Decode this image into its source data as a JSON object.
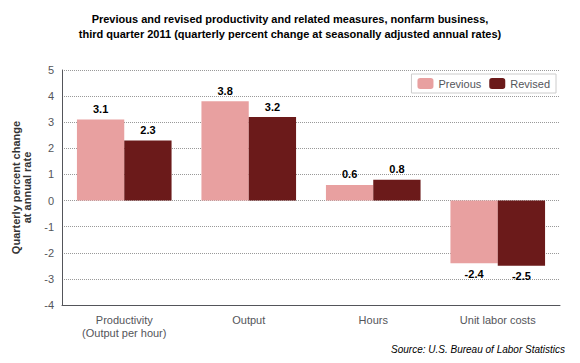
{
  "chart_data": {
    "type": "bar",
    "title": "Previous and revised productivity and related measures, nonfarm business,\nthird quarter 2011 (quarterly percent change at seasonally adjusted annual rates)",
    "categories": [
      "Productivity\n(Output per hour)",
      "Output",
      "Hours",
      "Unit labor costs"
    ],
    "series": [
      {
        "name": "Previous",
        "color": "#E8A0A0",
        "values": [
          3.1,
          3.8,
          0.6,
          -2.4
        ]
      },
      {
        "name": "Revised",
        "color": "#6B1A1A",
        "values": [
          2.3,
          3.2,
          0.8,
          -2.5
        ]
      }
    ],
    "ylabel": "Quarterly percent change\nat annual rate",
    "ylim": [
      -4,
      5
    ],
    "yticks": [
      -4,
      -3,
      -2,
      -1,
      0,
      1,
      2,
      3,
      4,
      5
    ],
    "grid": true,
    "legend": "upper right",
    "data_labels": true,
    "source": "Source: U.S. Bureau of Labor Statistics"
  }
}
